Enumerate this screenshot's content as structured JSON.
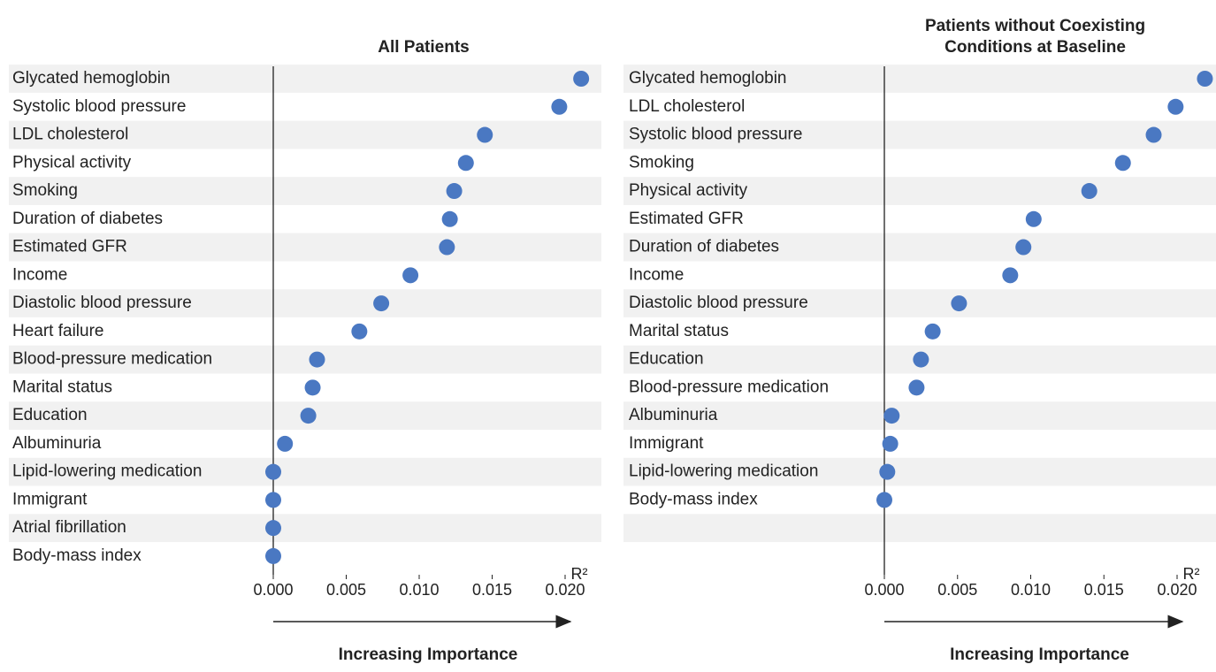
{
  "chart_data": [
    {
      "type": "dot",
      "title": [
        "All Patients"
      ],
      "x_label": "R²",
      "annotation": "Increasing Importance",
      "color": "#4a78c2",
      "categories": [
        "Glycated hemoglobin",
        "Systolic blood pressure",
        "LDL cholesterol",
        "Physical activity",
        "Smoking",
        "Duration of diabetes",
        "Estimated GFR",
        "Income",
        "Diastolic blood pressure",
        "Heart failure",
        "Blood-pressure medication",
        "Marital status",
        "Education",
        "Albuminuria",
        "Lipid-lowering medication",
        "Immigrant",
        "Atrial fibrillation",
        "Body-mass index"
      ],
      "values": [
        0.0211,
        0.0196,
        0.0145,
        0.0132,
        0.0124,
        0.0121,
        0.0119,
        0.0094,
        0.0074,
        0.0059,
        0.003,
        0.0027,
        0.0024,
        0.0008,
        0,
        0,
        0,
        0
      ],
      "xlim": [
        0,
        0.02
      ],
      "xticks": [
        {
          "value": 0,
          "label": "0.000"
        },
        {
          "value": 0.005,
          "label": "0.005"
        },
        {
          "value": 0.01,
          "label": "0.010"
        },
        {
          "value": 0.015,
          "label": "0.015"
        },
        {
          "value": 0.02,
          "label": "0.020"
        }
      ]
    },
    {
      "type": "dot",
      "title": [
        "Patients without Coexisting",
        "Conditions at Baseline"
      ],
      "x_label": "R²",
      "annotation": "Increasing Importance",
      "color": "#4a78c2",
      "categories": [
        "Glycated hemoglobin",
        "LDL cholesterol",
        "Systolic blood pressure",
        "Smoking",
        "Physical activity",
        "Estimated GFR",
        "Duration of diabetes",
        "Income",
        "Diastolic blood pressure",
        "Marital status",
        "Education",
        "Blood-pressure medication",
        "Albuminuria",
        "Immigrant",
        "Lipid-lowering medication",
        "Body-mass index"
      ],
      "values": [
        0.0219,
        0.0199,
        0.0184,
        0.0163,
        0.014,
        0.0102,
        0.0095,
        0.0086,
        0.0051,
        0.0033,
        0.0025,
        0.0022,
        0.0005,
        0.0004,
        0.0002,
        0
      ],
      "xlim": [
        0,
        0.02
      ],
      "xticks": [
        {
          "value": 0,
          "label": "0.000"
        },
        {
          "value": 0.005,
          "label": "0.005"
        },
        {
          "value": 0.01,
          "label": "0.010"
        },
        {
          "value": 0.015,
          "label": "0.015"
        },
        {
          "value": 0.02,
          "label": "0.020"
        }
      ]
    }
  ]
}
